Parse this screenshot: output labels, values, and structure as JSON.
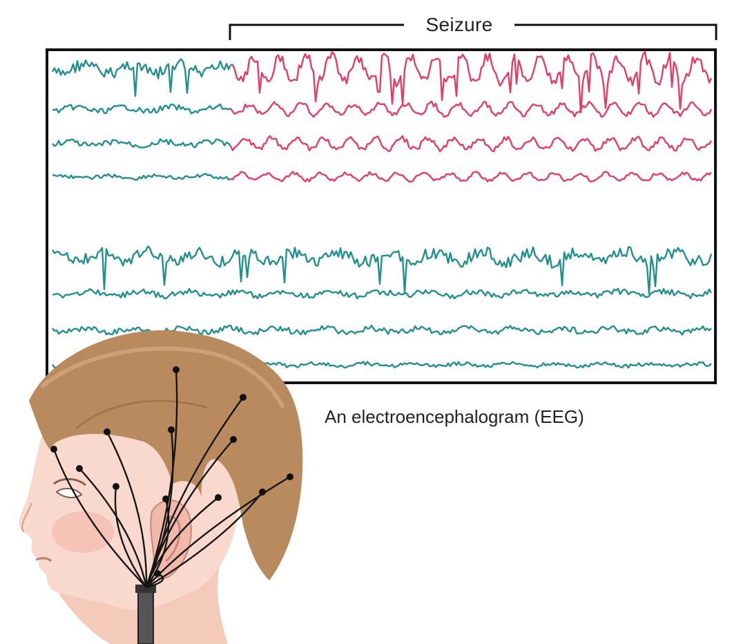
{
  "labels": {
    "seizure": "Seizure",
    "caption": "An electroencephalogram (EEG)"
  },
  "colors": {
    "normal_trace": "#1f8f8f",
    "seizure_trace": "#e83a62",
    "frame": "#111111",
    "hair": "#b9895e",
    "skin": "#f7d5c8",
    "wire": "#151515"
  },
  "traces": [
    {
      "channel": 1,
      "amplitude": "high",
      "seizure": true
    },
    {
      "channel": 2,
      "amplitude": "medium",
      "seizure": true
    },
    {
      "channel": 3,
      "amplitude": "medium",
      "seizure": true
    },
    {
      "channel": 4,
      "amplitude": "low",
      "seizure": true
    },
    {
      "channel": 5,
      "amplitude": "high",
      "seizure": false
    },
    {
      "channel": 6,
      "amplitude": "medium",
      "seizure": false
    },
    {
      "channel": 7,
      "amplitude": "medium",
      "seizure": false
    },
    {
      "channel": 8,
      "amplitude": "low",
      "seizure": false
    }
  ]
}
